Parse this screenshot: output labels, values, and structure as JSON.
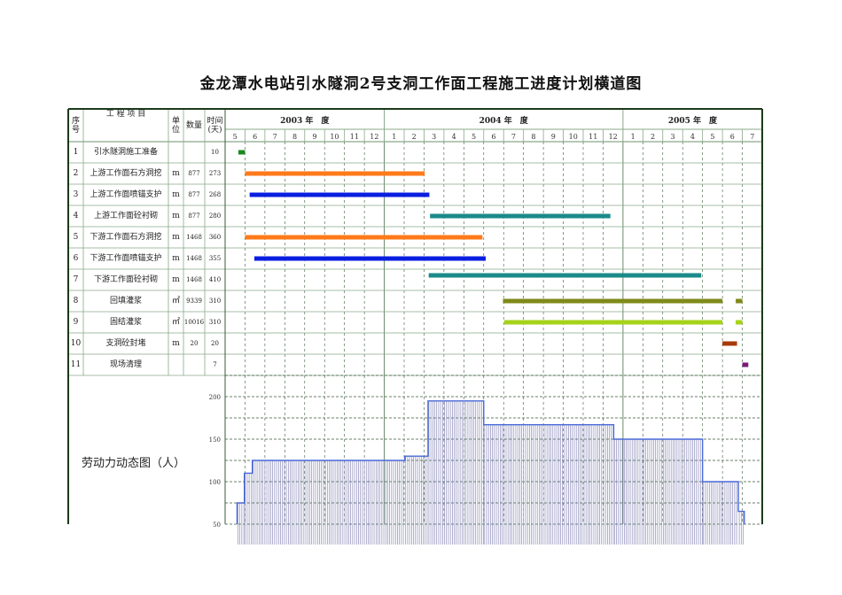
{
  "title": "金龙潭水电站引水隧洞2号支洞工作面工程施工进度计划横道图",
  "headers": {
    "seq": "序号",
    "item": "工 程 项 目",
    "unit": "单位",
    "qty": "数量",
    "days": "时间(天)"
  },
  "years": [
    {
      "label": "2003 年　度",
      "months": [
        "5",
        "6",
        "7",
        "8",
        "9",
        "10",
        "11",
        "12"
      ]
    },
    {
      "label": "2004 年　度",
      "months": [
        "1",
        "2",
        "3",
        "4",
        "5",
        "6",
        "7",
        "8",
        "9",
        "10",
        "11",
        "12"
      ]
    },
    {
      "label": "2005 年　度",
      "months": [
        "1",
        "2",
        "3",
        "4",
        "5",
        "6",
        "7"
      ]
    }
  ],
  "rows": [
    {
      "seq": "1",
      "item": "引水隧洞施工准备",
      "unit": "",
      "qty": "",
      "days": "10",
      "color": "#1a8a1a",
      "bars": [
        [
          "2003-05-21",
          "2003-05-31"
        ]
      ]
    },
    {
      "seq": "2",
      "item": "上游工作面石方洞挖",
      "unit": "m",
      "qty": "877",
      "days": "273",
      "color": "#ff7a1a",
      "bars": [
        [
          "2003-06-01",
          "2004-03-02"
        ]
      ]
    },
    {
      "seq": "3",
      "item": "上游工作面喷锚支护",
      "unit": "m",
      "qty": "877",
      "days": "268",
      "color": "#0a1ee0",
      "bars": [
        [
          "2003-06-08",
          "2004-03-09"
        ]
      ]
    },
    {
      "seq": "4",
      "item": "上游工作面砼衬砌",
      "unit": "m",
      "qty": "877",
      "days": "280",
      "color": "#1a8a8a",
      "bars": [
        [
          "2004-03-10",
          "2004-12-12"
        ]
      ]
    },
    {
      "seq": "5",
      "item": "下游工作面石方洞挖",
      "unit": "m",
      "qty": "1468",
      "days": "360",
      "color": "#ff7a1a",
      "bars": [
        [
          "2003-06-01",
          "2004-05-29"
        ]
      ]
    },
    {
      "seq": "6",
      "item": "下游工作面喷锚支护",
      "unit": "m",
      "qty": "1468",
      "days": "355",
      "color": "#0a1ee0",
      "bars": [
        [
          "2003-06-15",
          "2004-06-04"
        ]
      ]
    },
    {
      "seq": "7",
      "item": "下游工作面砼衬砌",
      "unit": "m",
      "qty": "1468",
      "days": "410",
      "color": "#1a8a8a",
      "bars": [
        [
          "2004-03-08",
          "2005-04-29"
        ]
      ]
    },
    {
      "seq": "8",
      "item": "回填灌浆",
      "unit": "㎡",
      "qty": "9339",
      "days": "310",
      "color": "#7f8a1a",
      "bars": [
        [
          "2004-06-30",
          "2005-05-31"
        ],
        [
          "2005-06-21",
          "2005-07-01"
        ]
      ]
    },
    {
      "seq": "9",
      "item": "固结灌浆",
      "unit": "㎡",
      "qty": "10016",
      "days": "310",
      "color": "#a6d21a",
      "bars": [
        [
          "2004-07-02",
          "2005-05-31"
        ],
        [
          "2005-06-21",
          "2005-07-01"
        ]
      ]
    },
    {
      "seq": "10",
      "item": "支洞砼封堵",
      "unit": "m",
      "qty": "20",
      "days": "20",
      "color": "#a83a0a",
      "bars": [
        [
          "2005-06-01",
          "2005-06-23"
        ]
      ]
    },
    {
      "seq": "11",
      "item": "现场清理",
      "unit": "",
      "qty": "",
      "days": "7",
      "color": "#7a1a7a",
      "bars": [
        [
          "2005-07-01",
          "2005-07-10"
        ]
      ]
    }
  ],
  "labor": {
    "label": "劳动力动态图（人）",
    "yticks": [
      200,
      150,
      100,
      50
    ],
    "line_color": "#4a6ad8",
    "hatch_color": "#7a7ab0",
    "steps": [
      {
        "from": "2003-05-19",
        "to": "2003-05-30",
        "value": 75
      },
      {
        "from": "2003-05-30",
        "to": "2003-06-12",
        "value": 110
      },
      {
        "from": "2003-06-12",
        "to": "2004-02-02",
        "value": 125
      },
      {
        "from": "2004-02-02",
        "to": "2004-03-07",
        "value": 130
      },
      {
        "from": "2004-03-07",
        "to": "2004-06-01",
        "value": 195
      },
      {
        "from": "2004-06-01",
        "to": "2004-12-17",
        "value": 167
      },
      {
        "from": "2004-12-17",
        "to": "2005-05-01",
        "value": 150
      },
      {
        "from": "2005-05-01",
        "to": "2005-06-25",
        "value": 100
      },
      {
        "from": "2005-06-25",
        "to": "2005-07-04",
        "value": 65
      }
    ]
  }
}
